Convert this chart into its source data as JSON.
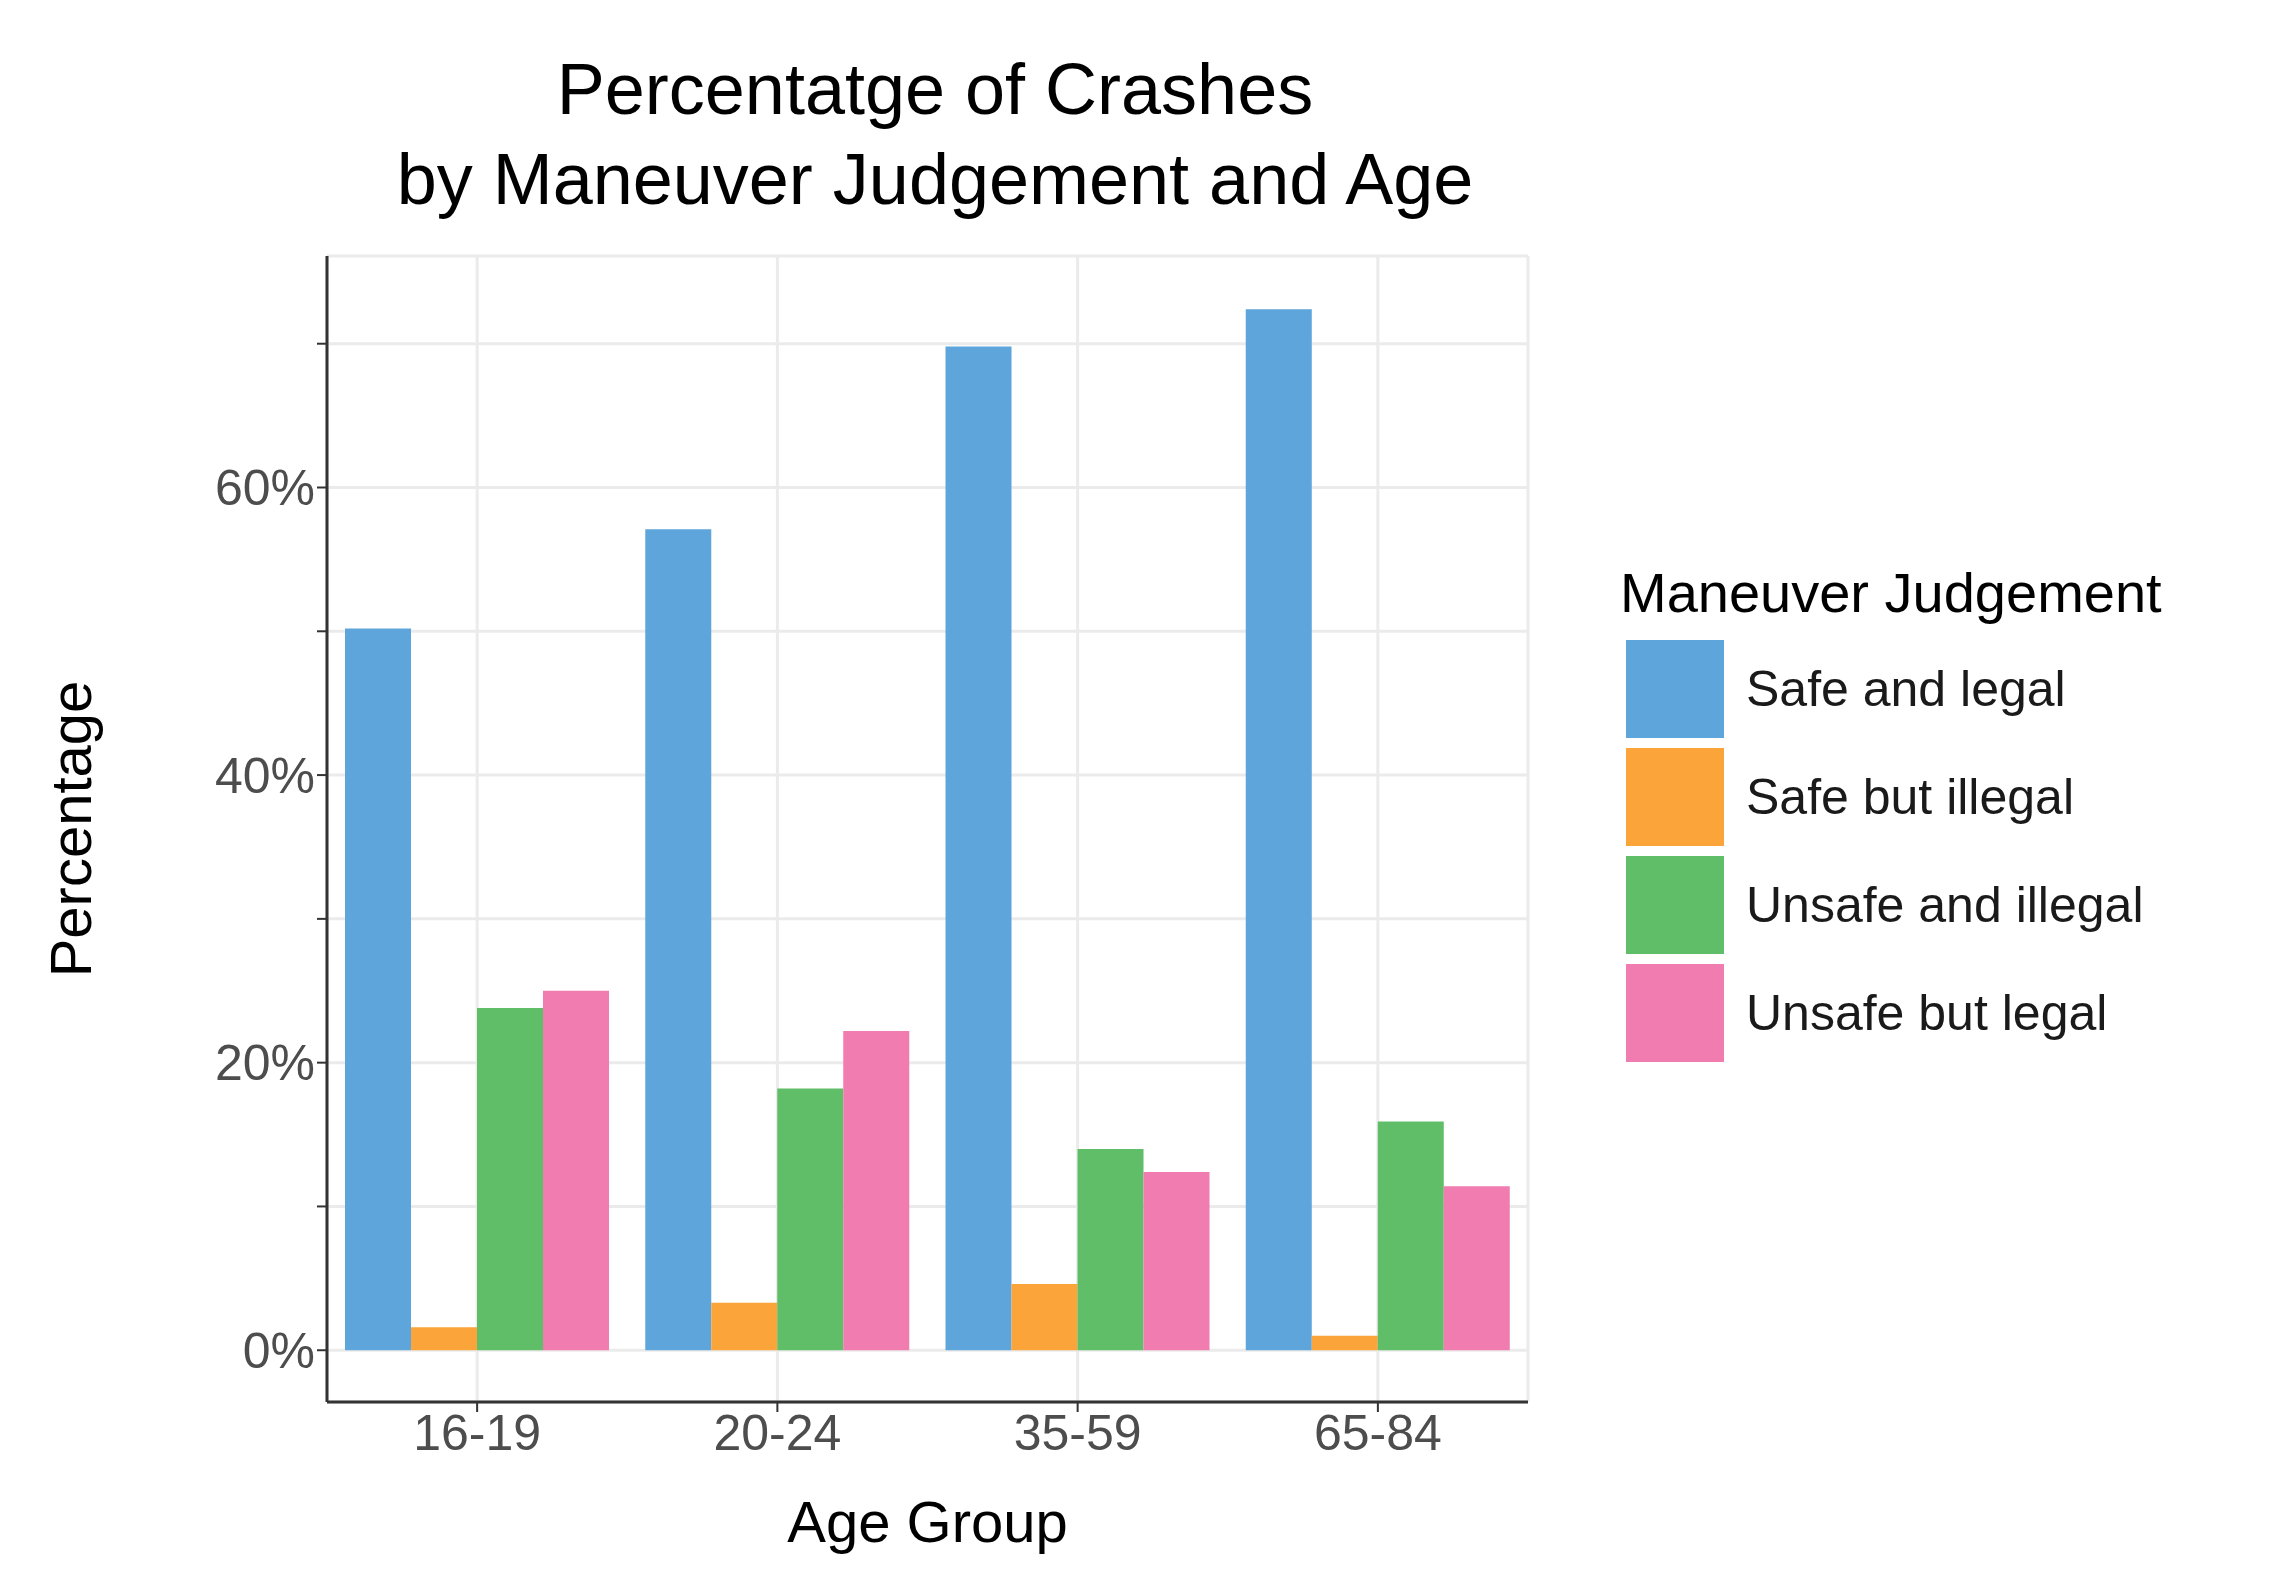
{
  "chart_data": {
    "type": "bar",
    "title": "Percentatge of Crashes\nby Maneuver Judgement and Age",
    "xlabel": "Age Group",
    "ylabel": "Percentage",
    "legend_title": "Maneuver Judgement",
    "categories": [
      "16-19",
      "20-24",
      "35-59",
      "65-84"
    ],
    "series": [
      {
        "name": "Safe and legal",
        "color": "#5da5da",
        "values": [
          50.2,
          57.1,
          69.8,
          72.4
        ]
      },
      {
        "name": "Safe but illegal",
        "color": "#faa43a",
        "values": [
          1.6,
          3.3,
          4.6,
          1.0
        ]
      },
      {
        "name": "Unsafe and illegal",
        "color": "#60bd68",
        "values": [
          23.8,
          18.2,
          14.0,
          15.9
        ]
      },
      {
        "name": "Unsafe but legal",
        "color": "#f17cb0",
        "values": [
          25.0,
          22.2,
          12.4,
          11.4
        ]
      }
    ],
    "ylim": [
      -3.6,
      76.1
    ],
    "yticks": [
      {
        "value": 0,
        "label": "0%"
      },
      {
        "value": 10,
        "label": null
      },
      {
        "value": 20,
        "label": "20%"
      },
      {
        "value": 30,
        "label": null
      },
      {
        "value": 40,
        "label": "40%"
      },
      {
        "value": 50,
        "label": null
      },
      {
        "value": 60,
        "label": "60%"
      },
      {
        "value": 70,
        "label": null
      }
    ],
    "grid": true,
    "legend": "right"
  }
}
